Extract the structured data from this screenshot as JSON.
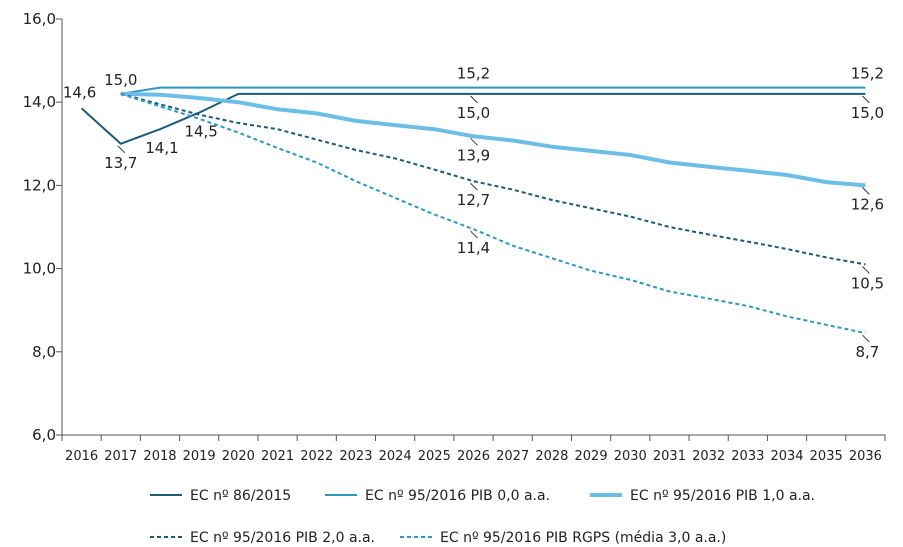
{
  "chart_data": {
    "type": "line",
    "x": [
      "2016",
      "2017",
      "2018",
      "2019",
      "2020",
      "2021",
      "2022",
      "2023",
      "2024",
      "2025",
      "2026",
      "2027",
      "2028",
      "2029",
      "2030",
      "2031",
      "2032",
      "2033",
      "2034",
      "2035",
      "2036"
    ],
    "ylim": [
      6.0,
      16.0
    ],
    "yticks": [
      "6,0",
      "8,0",
      "10,0",
      "12,0",
      "14,0",
      "16,0"
    ],
    "grid": false,
    "legend_position": "bottom",
    "series": [
      {
        "name": "EC nº 86/2015",
        "color": "#1b5a78",
        "dash": "solid",
        "width": "normal",
        "values": [
          13.85,
          13.0,
          13.35,
          13.75,
          14.2,
          14.2,
          14.2,
          14.2,
          14.2,
          14.2,
          14.2,
          14.2,
          14.2,
          14.2,
          14.2,
          14.2,
          14.2,
          14.2,
          14.2,
          14.2,
          14.2
        ]
      },
      {
        "name": "EC nº 95/2016 PIB 0,0 a.a.",
        "color": "#2d98c4",
        "dash": "solid",
        "width": "normal",
        "values": [
          null,
          14.2,
          14.35,
          14.35,
          14.35,
          14.35,
          14.35,
          14.35,
          14.35,
          14.35,
          14.35,
          14.35,
          14.35,
          14.35,
          14.35,
          14.35,
          14.35,
          14.35,
          14.35,
          14.35,
          14.35
        ]
      },
      {
        "name": "EC nº 95/2016 PIB 1,0 a.a.",
        "color": "#6bbfe6",
        "dash": "solid",
        "width": "thick",
        "values": [
          null,
          14.2,
          14.18,
          14.1,
          14.0,
          13.83,
          13.73,
          13.55,
          13.45,
          13.35,
          13.18,
          13.08,
          12.93,
          12.83,
          12.73,
          12.55,
          12.45,
          12.35,
          12.25,
          12.08,
          12.0
        ]
      },
      {
        "name": "EC nº 95/2016 PIB 2,0 a.a.",
        "color": "#1b5a78",
        "dash": "dashed",
        "width": "normal",
        "values": [
          null,
          14.2,
          13.95,
          13.7,
          13.5,
          13.35,
          13.1,
          12.85,
          12.65,
          12.38,
          12.1,
          11.9,
          11.65,
          11.45,
          11.25,
          11.0,
          10.82,
          10.65,
          10.47,
          10.27,
          10.1
        ]
      },
      {
        "name": "EC nº 95/2016 PIB RGPS (média 3,0 a.a.)",
        "color": "#2d98c4",
        "dash": "dashed",
        "width": "normal",
        "values": [
          null,
          14.2,
          13.9,
          13.6,
          13.27,
          12.9,
          12.55,
          12.1,
          11.7,
          11.3,
          10.95,
          10.55,
          10.25,
          9.95,
          9.73,
          9.45,
          9.28,
          9.1,
          8.85,
          8.65,
          8.45
        ]
      }
    ],
    "data_labels": [
      {
        "text": "14,6",
        "x": "2016",
        "y": 13.85,
        "pos": "above-left"
      },
      {
        "text": "15,0",
        "x": "2017",
        "y": 14.2,
        "pos": "above"
      },
      {
        "text": "13,7",
        "x": "2017",
        "y": 13.0,
        "pos": "below"
      },
      {
        "text": "14,1",
        "x": "2018",
        "y": 13.35,
        "pos": "below-right"
      },
      {
        "text": "14,5",
        "x": "2019",
        "y": 13.75,
        "pos": "below-right"
      },
      {
        "text": "15,2",
        "x": "2026",
        "y": 14.35,
        "pos": "above"
      },
      {
        "text": "15,0",
        "x": "2026",
        "y": 14.2,
        "pos": "below"
      },
      {
        "text": "13,9",
        "x": "2026",
        "y": 13.18,
        "pos": "below"
      },
      {
        "text": "12,7",
        "x": "2026",
        "y": 12.1,
        "pos": "below"
      },
      {
        "text": "11,4",
        "x": "2026",
        "y": 10.95,
        "pos": "below"
      },
      {
        "text": "15,2",
        "x": "2036",
        "y": 14.35,
        "pos": "above"
      },
      {
        "text": "15,0",
        "x": "2036",
        "y": 14.2,
        "pos": "below"
      },
      {
        "text": "12,6",
        "x": "2036",
        "y": 12.0,
        "pos": "below"
      },
      {
        "text": "10,5",
        "x": "2036",
        "y": 10.1,
        "pos": "below"
      },
      {
        "text": "8,7",
        "x": "2036",
        "y": 8.45,
        "pos": "below"
      }
    ]
  }
}
